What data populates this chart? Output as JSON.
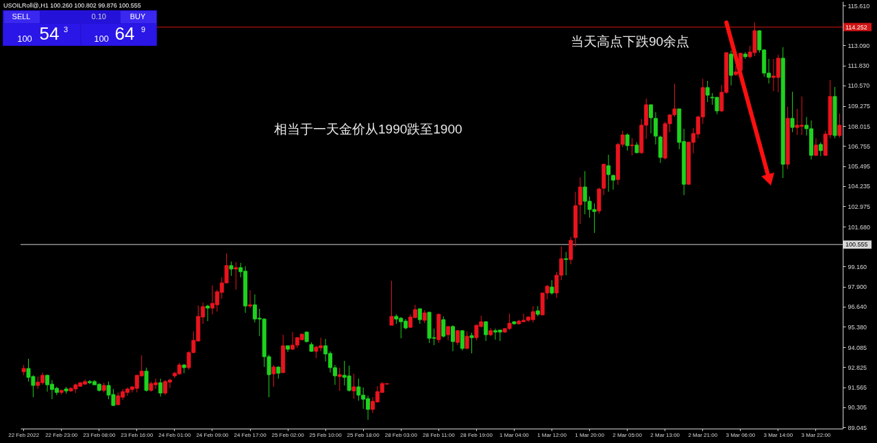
{
  "chart_data": {
    "type": "candlestick",
    "title": "USOILRoll@,H1  100.260 100.802 99.876 100.555",
    "categories": [
      "22 Feb 2022",
      null,
      null,
      null,
      null,
      null,
      null,
      null,
      "22 Feb 23:00",
      null,
      null,
      null,
      null,
      null,
      null,
      null,
      "23 Feb 08:00",
      null,
      null,
      null,
      null,
      null,
      null,
      null,
      "23 Feb 16:00",
      null,
      null,
      null,
      null,
      null,
      null,
      null,
      "24 Feb 01:00",
      null,
      null,
      null,
      null,
      null,
      null,
      null,
      "24 Feb 09:00",
      null,
      null,
      null,
      null,
      null,
      null,
      null,
      "24 Feb 17:00",
      null,
      null,
      null,
      null,
      null,
      null,
      null,
      "25 Feb 02:00",
      null,
      null,
      null,
      null,
      null,
      null,
      null,
      "25 Feb 10:00",
      null,
      null,
      null,
      null,
      null,
      null,
      null,
      "25 Feb 18:00",
      null,
      null,
      null,
      null,
      null,
      null,
      null,
      "28 Feb 03:00",
      null,
      null,
      null,
      null,
      null,
      null,
      null,
      "28 Feb 11:00",
      null,
      null,
      null,
      null,
      null,
      null,
      null,
      "28 Feb 19:00",
      null,
      null,
      null,
      null,
      null,
      null,
      null,
      "1 Mar 04:00",
      null,
      null,
      null,
      null,
      null,
      null,
      null,
      "1 Mar 12:00",
      null,
      null,
      null,
      null,
      null,
      null,
      null,
      "1 Mar 20:00",
      null,
      null,
      null,
      null,
      null,
      null,
      null,
      "2 Mar 05:00",
      null,
      null,
      null,
      null,
      null,
      null,
      null,
      "2 Mar 13:00",
      null,
      null,
      null,
      null,
      null,
      null,
      null,
      "2 Mar 21:00",
      null,
      null,
      null,
      null,
      null,
      null,
      null,
      "3 Mar 06:00",
      null,
      null,
      null,
      null,
      null,
      null,
      null,
      "3 Mar 14:00",
      null,
      null,
      null,
      null,
      null,
      null,
      null,
      "3 Mar 22:00",
      null,
      null,
      null,
      null,
      null
    ],
    "ohlc": [
      [
        92.54,
        92.97,
        92.32,
        92.75
      ],
      [
        92.75,
        93.36,
        91.93,
        92.19
      ],
      [
        92.24,
        92.32,
        90.94,
        91.68
      ],
      [
        91.68,
        92.24,
        91.46,
        91.89
      ],
      [
        91.85,
        92.49,
        91.72,
        92.32
      ],
      [
        92.32,
        92.36,
        91.29,
        91.72
      ],
      [
        91.76,
        92.02,
        90.81,
        91.42
      ],
      [
        91.5,
        91.59,
        91.07,
        91.24
      ],
      [
        91.24,
        91.42,
        91.11,
        91.37
      ],
      [
        91.46,
        91.59,
        91.16,
        91.33
      ],
      [
        91.33,
        91.55,
        91.29,
        91.5
      ],
      [
        91.46,
        91.8,
        91.2,
        91.72
      ],
      [
        91.63,
        91.89,
        91.59,
        91.85
      ],
      [
        91.76,
        92.06,
        91.72,
        91.93
      ],
      [
        91.93,
        92.02,
        91.76,
        91.85
      ],
      [
        91.93,
        92.02,
        91.72,
        91.72
      ],
      [
        91.76,
        91.8,
        91.29,
        91.37
      ],
      [
        91.37,
        91.85,
        91.24,
        91.68
      ],
      [
        91.68,
        91.93,
        90.81,
        91.07
      ],
      [
        91.11,
        91.46,
        90.38,
        90.42
      ],
      [
        90.47,
        91.24,
        90.42,
        91.03
      ],
      [
        90.94,
        91.46,
        90.77,
        91.29
      ],
      [
        91.24,
        91.55,
        91.03,
        91.46
      ],
      [
        91.42,
        91.63,
        91.24,
        91.59
      ],
      [
        91.5,
        92.36,
        91.24,
        92.32
      ],
      [
        92.28,
        93.57,
        92.24,
        92.58
      ],
      [
        92.58,
        92.8,
        91.29,
        91.37
      ],
      [
        91.37,
        91.93,
        91.29,
        91.8
      ],
      [
        91.72,
        92.11,
        91.46,
        91.85
      ],
      [
        91.85,
        92.11,
        90.98,
        91.2
      ],
      [
        91.2,
        92.02,
        91.07,
        91.93
      ],
      [
        91.89,
        92.11,
        91.5,
        92.02
      ],
      [
        92.28,
        92.54,
        92.15,
        92.45
      ],
      [
        92.41,
        93.1,
        92.36,
        92.97
      ],
      [
        92.97,
        93.02,
        92.45,
        92.8
      ],
      [
        92.8,
        93.83,
        92.67,
        93.75
      ],
      [
        93.75,
        95.08,
        93.7,
        94.52
      ],
      [
        94.48,
        96.72,
        94.44,
        96.03
      ],
      [
        95.99,
        96.89,
        95.56,
        96.64
      ],
      [
        96.68,
        96.76,
        95.73,
        96.55
      ],
      [
        96.55,
        97.97,
        96.16,
        96.85
      ],
      [
        96.76,
        97.71,
        96.33,
        97.58
      ],
      [
        97.54,
        98.49,
        97.15,
        98.14
      ],
      [
        98.14,
        100.0,
        98.1,
        99.23
      ],
      [
        99.23,
        99.48,
        98.58,
        99.01
      ],
      [
        99.01,
        99.44,
        97.71,
        99.1
      ],
      [
        99.1,
        99.4,
        98.49,
        98.84
      ],
      [
        98.88,
        99.18,
        96.25,
        96.68
      ],
      [
        96.68,
        97.67,
        96.55,
        96.76
      ],
      [
        96.76,
        97.41,
        95.65,
        95.86
      ],
      [
        95.91,
        96.51,
        94.78,
        95.86
      ],
      [
        95.86,
        95.91,
        92.84,
        93.49
      ],
      [
        93.49,
        93.62,
        90.94,
        92.36
      ],
      [
        92.41,
        92.97,
        91.59,
        92.84
      ],
      [
        92.84,
        92.88,
        92.11,
        92.45
      ],
      [
        92.49,
        94.87,
        92.45,
        94.18
      ],
      [
        94.18,
        94.18,
        93.79,
        93.96
      ],
      [
        93.96,
        95.04,
        93.92,
        94.22
      ],
      [
        94.22,
        94.74,
        94.05,
        94.69
      ],
      [
        94.56,
        94.95,
        94.52,
        94.91
      ],
      [
        95.04,
        95.08,
        94.39,
        94.44
      ],
      [
        94.26,
        94.39,
        93.79,
        93.83
      ],
      [
        93.83,
        94.18,
        93.4,
        94.09
      ],
      [
        94.05,
        94.69,
        93.83,
        94.18
      ],
      [
        94.18,
        94.61,
        93.19,
        93.66
      ],
      [
        93.7,
        93.83,
        92.49,
        92.8
      ],
      [
        92.8,
        92.97,
        91.72,
        92.28
      ],
      [
        92.24,
        92.8,
        91.33,
        92.36
      ],
      [
        92.32,
        93.23,
        91.68,
        92.19
      ],
      [
        92.28,
        92.93,
        91.29,
        91.37
      ],
      [
        91.33,
        92.41,
        90.85,
        91.59
      ],
      [
        91.59,
        92.11,
        90.72,
        91.07
      ],
      [
        91.07,
        91.55,
        90.21,
        90.81
      ],
      [
        90.85,
        91.03,
        89.52,
        90.17
      ],
      [
        90.17,
        90.94,
        89.95,
        90.68
      ],
      [
        90.64,
        91.63,
        90.6,
        91.29
      ],
      [
        91.24,
        91.89,
        91.24,
        91.8
      ],
      [
        91.76,
        91.8,
        91.76,
        91.8
      ],
      [
        95.47,
        98.27,
        95.47,
        96.03
      ],
      [
        96.03,
        96.16,
        95.56,
        95.86
      ],
      [
        95.91,
        95.99,
        94.65,
        95.69
      ],
      [
        95.73,
        95.86,
        95.21,
        95.3
      ],
      [
        95.34,
        96.16,
        95.3,
        95.99
      ],
      [
        95.95,
        96.76,
        95.91,
        96.46
      ],
      [
        96.51,
        96.51,
        95.56,
        95.82
      ],
      [
        95.78,
        96.42,
        95.6,
        96.25
      ],
      [
        96.29,
        96.33,
        94.35,
        94.65
      ],
      [
        94.69,
        95.26,
        94.22,
        94.65
      ],
      [
        94.56,
        96.2,
        94.35,
        96.16
      ],
      [
        95.82,
        96.03,
        94.69,
        94.78
      ],
      [
        94.87,
        95.39,
        94.52,
        95.39
      ],
      [
        95.39,
        95.47,
        93.83,
        94.44
      ],
      [
        94.39,
        95.17,
        94.22,
        95.13
      ],
      [
        95.13,
        95.17,
        93.88,
        94.01
      ],
      [
        94.01,
        95.08,
        93.96,
        94.78
      ],
      [
        94.82,
        95.0,
        93.7,
        94.69
      ],
      [
        94.69,
        95.51,
        94.52,
        95.47
      ],
      [
        95.39,
        96.07,
        95.34,
        95.69
      ],
      [
        95.69,
        95.73,
        94.48,
        94.87
      ],
      [
        94.87,
        95.3,
        94.78,
        95.13
      ],
      [
        95.13,
        95.26,
        94.56,
        95.04
      ],
      [
        95.17,
        95.17,
        94.48,
        95.04
      ],
      [
        95.04,
        95.3,
        95.0,
        95.26
      ],
      [
        95.26,
        96.2,
        95.17,
        95.6
      ],
      [
        95.69,
        95.73,
        95.51,
        95.56
      ],
      [
        95.56,
        95.82,
        95.51,
        95.73
      ],
      [
        95.69,
        96.2,
        95.69,
        95.78
      ],
      [
        95.78,
        96.03,
        95.69,
        95.99
      ],
      [
        95.82,
        96.68,
        95.65,
        96.33
      ],
      [
        96.38,
        96.68,
        96.03,
        96.16
      ],
      [
        96.12,
        97.54,
        96.12,
        97.5
      ],
      [
        97.5,
        98.01,
        97.11,
        97.93
      ],
      [
        97.88,
        98.31,
        97.41,
        97.5
      ],
      [
        97.5,
        98.84,
        97.2,
        98.62
      ],
      [
        98.62,
        100.43,
        98.31,
        99.66
      ],
      [
        99.66,
        100.09,
        98.62,
        99.61
      ],
      [
        99.61,
        101.03,
        99.31,
        100.82
      ],
      [
        100.99,
        103.88,
        100.43,
        103.0
      ],
      [
        103.06,
        104.78,
        101.85,
        104.18
      ],
      [
        104.18,
        105.18,
        102.46,
        103.28
      ],
      [
        103.28,
        103.58,
        102.25,
        102.76
      ],
      [
        102.76,
        103.15,
        101.29,
        102.63
      ],
      [
        102.67,
        104.14,
        102.5,
        104.05
      ],
      [
        104.1,
        105.65,
        103.67,
        105.61
      ],
      [
        105.52,
        106.21,
        103.88,
        104.96
      ],
      [
        104.91,
        104.96,
        104.01,
        104.61
      ],
      [
        104.65,
        106.95,
        104.31,
        106.86
      ],
      [
        106.86,
        107.72,
        106.69,
        107.46
      ],
      [
        107.46,
        107.55,
        106.47,
        106.78
      ],
      [
        106.78,
        107.25,
        106.17,
        106.82
      ],
      [
        106.82,
        107.0,
        106.3,
        106.34
      ],
      [
        106.34,
        108.46,
        106.26,
        108.07
      ],
      [
        108.07,
        109.75,
        107.2,
        109.36
      ],
      [
        109.36,
        109.36,
        107.55,
        108.54
      ],
      [
        108.5,
        108.89,
        106.86,
        107.38
      ],
      [
        107.33,
        107.42,
        105.69,
        106.04
      ],
      [
        106.0,
        108.29,
        105.91,
        108.16
      ],
      [
        108.16,
        108.76,
        107.63,
        108.72
      ],
      [
        108.72,
        110.68,
        108.59,
        109.1
      ],
      [
        109.1,
        109.1,
        106.56,
        106.99
      ],
      [
        107.04,
        107.85,
        103.67,
        104.35
      ],
      [
        104.35,
        107.0,
        104.31,
        107.0
      ],
      [
        106.99,
        107.89,
        106.3,
        107.55
      ],
      [
        107.51,
        108.67,
        107.25,
        108.59
      ],
      [
        108.59,
        110.99,
        108.16,
        110.44
      ],
      [
        110.44,
        110.87,
        109.53,
        109.96
      ],
      [
        109.83,
        110.09,
        109.36,
        109.79
      ],
      [
        109.83,
        109.83,
        108.76,
        108.97
      ],
      [
        108.97,
        110.61,
        108.89,
        110.14
      ],
      [
        110.14,
        112.64,
        110.05,
        112.64
      ],
      [
        112.55,
        112.77,
        110.57,
        111.21
      ],
      [
        111.26,
        111.82,
        111.17,
        111.43
      ],
      [
        111.52,
        112.64,
        111.43,
        112.6
      ],
      [
        112.55,
        112.68,
        112.25,
        112.38
      ],
      [
        112.38,
        113.07,
        112.29,
        112.68
      ],
      [
        112.64,
        114.54,
        112.42,
        114.02
      ],
      [
        114.02,
        114.06,
        112.64,
        112.81
      ],
      [
        112.81,
        112.86,
        111.13,
        111.35
      ],
      [
        111.35,
        112.25,
        110.7,
        111.08
      ],
      [
        111.08,
        112.25,
        110.22,
        111.17
      ],
      [
        111.08,
        112.51,
        110.14,
        112.29
      ],
      [
        112.29,
        112.98,
        104.74,
        105.61
      ],
      [
        105.61,
        109.23,
        105.31,
        108.5
      ],
      [
        108.5,
        110.18,
        107.63,
        107.93
      ],
      [
        107.93,
        109.1,
        107.46,
        108.07
      ],
      [
        108.0,
        109.88,
        107.46,
        108.07
      ],
      [
        108.07,
        108.59,
        107.42,
        107.85
      ],
      [
        107.85,
        108.37,
        105.91,
        106.17
      ],
      [
        106.17,
        107.25,
        106.13,
        106.82
      ],
      [
        106.86,
        107.0,
        106.13,
        106.47
      ],
      [
        106.17,
        107.72,
        106.13,
        107.51
      ],
      [
        107.46,
        110.91,
        107.25,
        109.88
      ],
      [
        109.88,
        110.48,
        107.25,
        107.42
      ],
      [
        107.42,
        108.8,
        107.3,
        108.07
      ]
    ],
    "ylim": [
      88.96,
      115.87
    ],
    "yticks": [
      {
        "value": 115.61,
        "label": "115.610"
      },
      {
        "value": 113.09,
        "label": "113.090"
      },
      {
        "value": 111.83,
        "label": "111.830"
      },
      {
        "value": 110.57,
        "label": "110.570"
      },
      {
        "value": 109.275,
        "label": "109.275"
      },
      {
        "value": 108.015,
        "label": "108.015"
      },
      {
        "value": 106.755,
        "label": "106.755"
      },
      {
        "value": 105.495,
        "label": "105.495"
      },
      {
        "value": 104.235,
        "label": "104.235"
      },
      {
        "value": 102.975,
        "label": "102.975"
      },
      {
        "value": 101.68,
        "label": "101.680"
      },
      {
        "value": 99.16,
        "label": "99.160"
      },
      {
        "value": 97.9,
        "label": "97.900"
      },
      {
        "value": 96.64,
        "label": "96.640"
      },
      {
        "value": 95.38,
        "label": "95.380"
      },
      {
        "value": 94.085,
        "label": "94.085"
      },
      {
        "value": 92.825,
        "label": "92.825"
      },
      {
        "value": 91.565,
        "label": "91.565"
      },
      {
        "value": 90.305,
        "label": "90.305"
      },
      {
        "value": 89.045,
        "label": "89.045"
      }
    ],
    "ref_lines": [
      {
        "axis": "y",
        "value": 114.252,
        "label": "114.252",
        "color": "#d01414"
      },
      {
        "axis": "y",
        "value": 100.555,
        "label": "100.555",
        "color": "#d8d8d8"
      }
    ],
    "annotations": [
      "SELL",
      "0.10",
      "BUY",
      "100",
      "54",
      "3",
      "100",
      "64",
      "9",
      "当天高点下跌90余点",
      "相当于一天金价从1990跌至1900"
    ]
  }
}
